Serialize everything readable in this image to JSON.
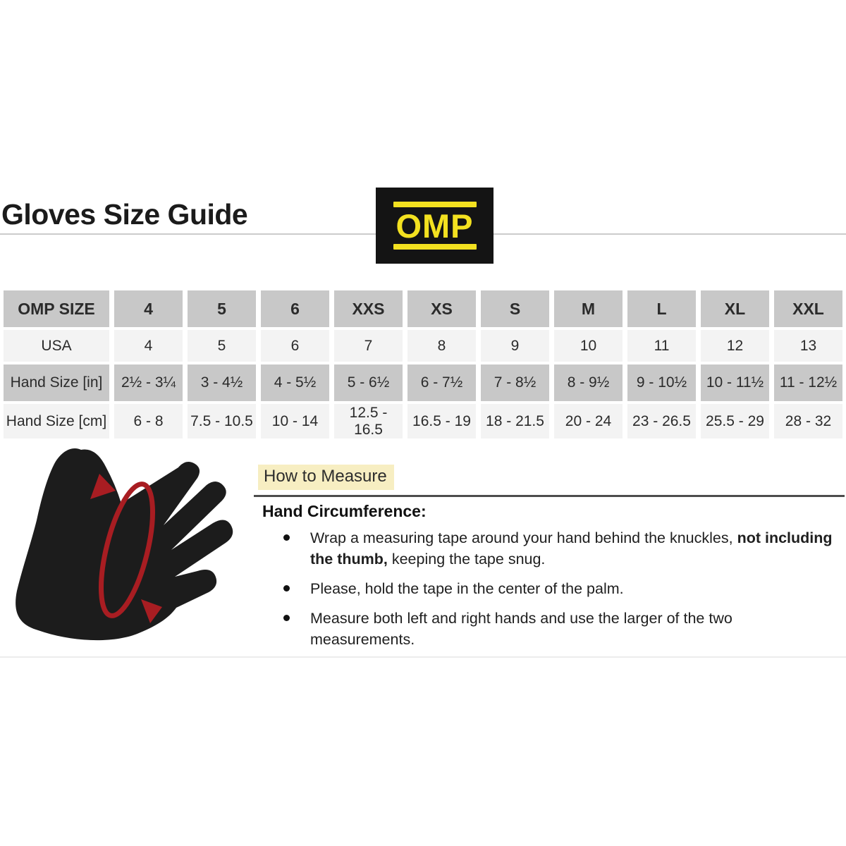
{
  "page": {
    "title": "Gloves Size Guide"
  },
  "logo": {
    "text": "OMP",
    "bg_color": "#141414",
    "yellow": "#f3e120"
  },
  "size_table": {
    "header_row": [
      "OMP SIZE",
      "4",
      "5",
      "6",
      "XXS",
      "XS",
      "S",
      "M",
      "L",
      "XL",
      "XXL"
    ],
    "rows": [
      {
        "label": "USA",
        "shade": "light",
        "values": [
          "4",
          "5",
          "6",
          "7",
          "8",
          "9",
          "10",
          "11",
          "12",
          "13"
        ]
      },
      {
        "label": "Hand Size [in]",
        "shade": "gray",
        "values": [
          "2½ - 3¼",
          "3 - 4½",
          "4 - 5½",
          "5 - 6½",
          "6 - 7½",
          "7 - 8½",
          "8 - 9½",
          "9 - 10½",
          "10 - 11½",
          "11 - 12½"
        ]
      },
      {
        "label": "Hand Size [cm]",
        "shade": "light",
        "values": [
          "6 - 8",
          "7.5 - 10.5",
          "10 - 14",
          "12.5 - 16.5",
          "16.5 - 19",
          "18 - 21.5",
          "20 - 24",
          "23 - 26.5",
          "25.5 - 29",
          "28 - 32"
        ]
      }
    ],
    "colors": {
      "header_bg": "#c8c8c8",
      "light_bg": "#f3f3f3"
    }
  },
  "measure": {
    "heading": "How to Measure",
    "subheading": "Hand Circumference:",
    "bullets": [
      {
        "pre": "Wrap a measuring tape around your hand behind the knuckles, ",
        "bold": "not including the thumb,",
        "post": " keeping the tape snug."
      },
      {
        "pre": "Please, hold the tape in the center of the palm.",
        "bold": "",
        "post": ""
      },
      {
        "pre": "Measure both left and right hands and use the larger of the two measurements.",
        "bold": "",
        "post": ""
      }
    ],
    "highlight_color": "#f7eec2"
  },
  "illustration": {
    "label": "hand-with-measuring-tape",
    "hand_color": "#1c1c1c",
    "tape_color": "#a81d22"
  }
}
